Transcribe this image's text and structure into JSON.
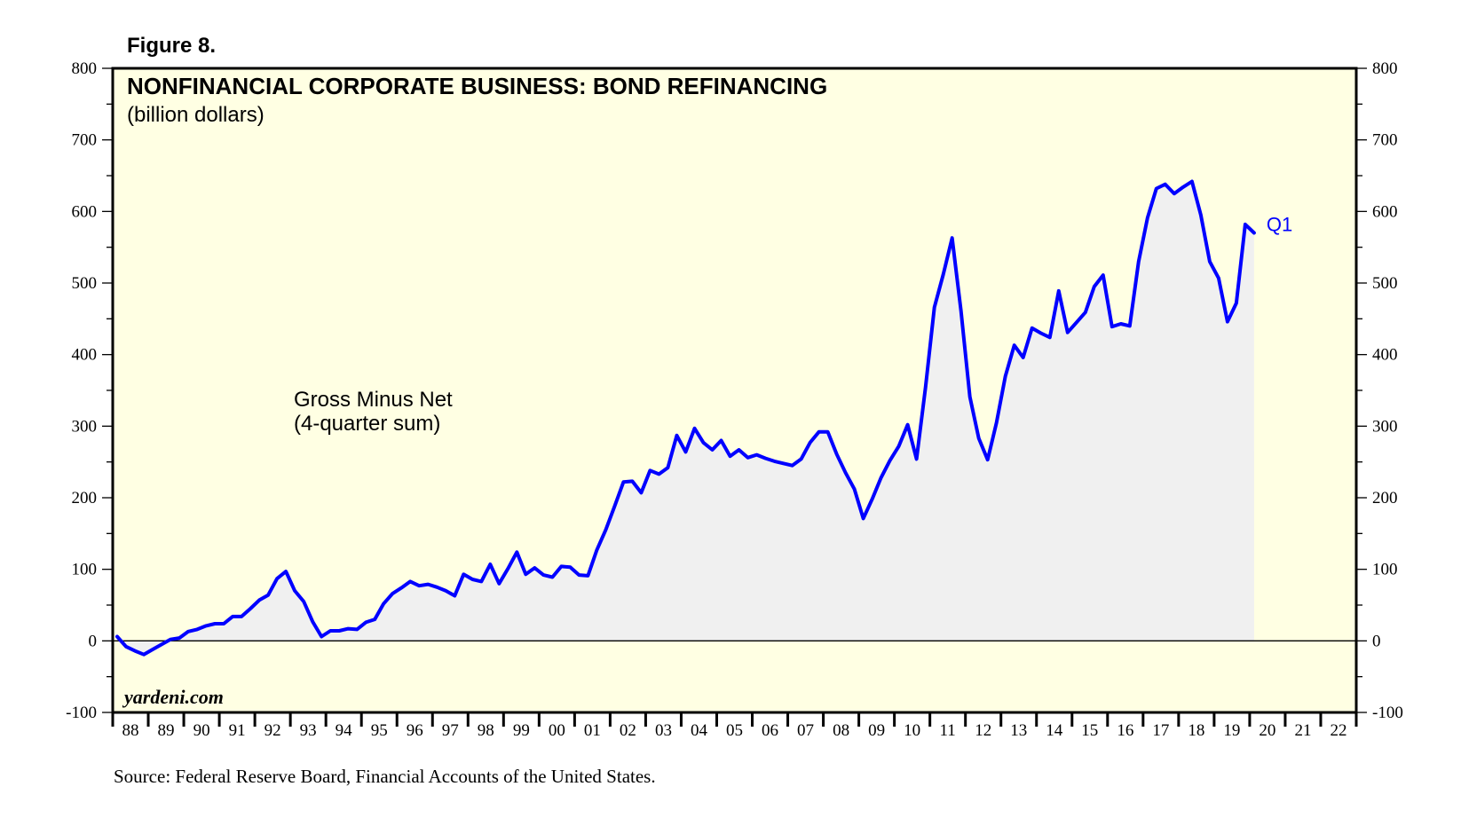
{
  "figure_label": "Figure 8.",
  "source": "Source: Federal Reserve Board, Financial Accounts of the United States.",
  "watermark": "yardeni.com",
  "colors": {
    "panel": "#FFFFE3",
    "line": "#0000FF",
    "area": "#F0F0F0",
    "frame": "#000000"
  },
  "chart_data": {
    "type": "area",
    "title": "NONFINANCIAL CORPORATE BUSINESS: BOND REFINANCING",
    "subtitle": "(billion dollars)",
    "annotation": [
      "Gross Minus Net",
      "(4-quarter sum)"
    ],
    "end_label": "Q1",
    "ylim": [
      -100,
      800
    ],
    "y_ticks": [
      800,
      700,
      600,
      500,
      400,
      300,
      200,
      100,
      0,
      -100
    ],
    "x_range": [
      1988,
      2023
    ],
    "x_tick_labels": [
      "88",
      "89",
      "90",
      "91",
      "92",
      "93",
      "94",
      "95",
      "96",
      "97",
      "98",
      "99",
      "00",
      "01",
      "02",
      "03",
      "04",
      "05",
      "06",
      "07",
      "08",
      "09",
      "10",
      "11",
      "12",
      "13",
      "14",
      "15",
      "16",
      "17",
      "18",
      "19",
      "20",
      "21",
      "22"
    ],
    "grid": false,
    "series": [
      {
        "x": [
          1988.125,
          1988.375,
          1988.625,
          1988.875,
          1989.125,
          1989.375,
          1989.625,
          1989.875,
          1990.125,
          1990.375,
          1990.625,
          1990.875,
          1991.125,
          1991.375,
          1991.625,
          1991.875,
          1992.125,
          1992.375,
          1992.625,
          1992.875,
          1993.125,
          1993.375,
          1993.625,
          1993.875,
          1994.125,
          1994.375,
          1994.625,
          1994.875,
          1995.125,
          1995.375,
          1995.625,
          1995.875,
          1996.125,
          1996.375,
          1996.625,
          1996.875,
          1997.125,
          1997.375,
          1997.625,
          1997.875,
          1998.125,
          1998.375,
          1998.625,
          1998.875,
          1999.125,
          1999.375,
          1999.625,
          1999.875,
          2000.125,
          2000.375,
          2000.625,
          2000.875,
          2001.125,
          2001.375,
          2001.625,
          2001.875,
          2002.125,
          2002.375,
          2002.625,
          2002.875,
          2003.125,
          2003.375,
          2003.625,
          2003.875,
          2004.125,
          2004.375,
          2004.625,
          2004.875,
          2005.125,
          2005.375,
          2005.625,
          2005.875,
          2006.125,
          2006.375,
          2006.625,
          2006.875,
          2007.125,
          2007.375,
          2007.625,
          2007.875,
          2008.125,
          2008.375,
          2008.625,
          2008.875,
          2009.125,
          2009.375,
          2009.625,
          2009.875,
          2010.125,
          2010.375,
          2010.625,
          2010.875,
          2011.125,
          2011.375,
          2011.625,
          2011.875,
          2012.125,
          2012.375,
          2012.625,
          2012.875,
          2013.125,
          2013.375,
          2013.625,
          2013.875,
          2014.125,
          2014.375,
          2014.625,
          2014.875,
          2015.125,
          2015.375,
          2015.625,
          2015.875,
          2016.125,
          2016.375,
          2016.625,
          2016.875,
          2017.125,
          2017.375,
          2017.625,
          2017.875,
          2018.125,
          2018.375,
          2018.625,
          2018.875,
          2019.125,
          2019.375,
          2019.625,
          2019.875,
          2020.125
        ],
        "values": [
          6,
          -8,
          -14,
          -19,
          -12,
          -5,
          2,
          4,
          13,
          16,
          21,
          24,
          24,
          34,
          34,
          45,
          57,
          64,
          87,
          97,
          70,
          55,
          27,
          6,
          14,
          14,
          17,
          16,
          26,
          30,
          52,
          66,
          74,
          83,
          77,
          79,
          75,
          70,
          63,
          93,
          86,
          83,
          107,
          80,
          101,
          124,
          93,
          102,
          92,
          89,
          104,
          103,
          92,
          91,
          127,
          155,
          188,
          222,
          223,
          207,
          238,
          233,
          242,
          287,
          264,
          297,
          277,
          267,
          280,
          258,
          267,
          256,
          260,
          255,
          251,
          248,
          245,
          254,
          277,
          292,
          292,
          261,
          235,
          212,
          171,
          198,
          228,
          252,
          272,
          302,
          254,
          354,
          466,
          512,
          563,
          461,
          341,
          283,
          253,
          305,
          370,
          413,
          396,
          437,
          430,
          424,
          489,
          431,
          445,
          459,
          495,
          511,
          439,
          443,
          440,
          530,
          591,
          632,
          638,
          625,
          634,
          642,
          595,
          530,
          507,
          446,
          472,
          582,
          570
        ]
      }
    ]
  }
}
